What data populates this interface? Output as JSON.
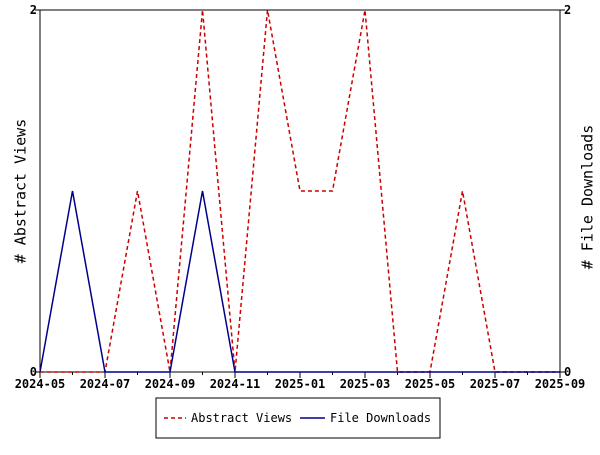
{
  "chart_data": {
    "type": "line",
    "x": [
      "2024-05",
      "2024-06",
      "2024-07",
      "2024-08",
      "2024-09",
      "2024-10",
      "2024-11",
      "2024-12",
      "2025-01",
      "2025-02",
      "2025-03",
      "2025-04",
      "2025-05",
      "2025-06",
      "2025-07",
      "2025-08",
      "2025-09"
    ],
    "xticks": [
      "2024-05",
      "2024-07",
      "2024-09",
      "2024-11",
      "2025-01",
      "2025-03",
      "2025-05",
      "2025-07",
      "2025-09"
    ],
    "xlim": [
      "2024-05",
      "2025-09"
    ],
    "series": [
      {
        "name": "Abstract Views",
        "axis": "left",
        "color": "#cc0000",
        "style": "dashed",
        "values": [
          0,
          0,
          0,
          1,
          0,
          2,
          0,
          2,
          1,
          1,
          2,
          0,
          0,
          1,
          0,
          0,
          0
        ]
      },
      {
        "name": "File Downloads",
        "axis": "right",
        "color": "#00008b",
        "style": "solid",
        "values": [
          0,
          1,
          0,
          0,
          0,
          1,
          0,
          0,
          0,
          0,
          0,
          0,
          0,
          0,
          0,
          0,
          0
        ]
      }
    ],
    "ylabel": "# Abstract Views",
    "y2label": "# File Downloads",
    "ylim": [
      0,
      2
    ],
    "y2lim": [
      0,
      2
    ],
    "yticks": [
      "0",
      "2"
    ],
    "y2ticks": [
      "0",
      "2"
    ],
    "grid": false,
    "legend_position": "bottom"
  }
}
